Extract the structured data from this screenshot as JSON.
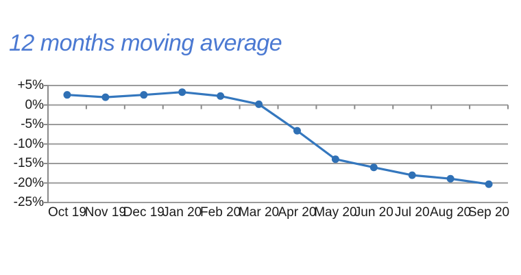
{
  "title": {
    "text": "12 months moving average",
    "color": "#4b79d2"
  },
  "chart_data": {
    "type": "line",
    "title": "12 months moving average",
    "categories": [
      "Oct 19",
      "Nov 19",
      "Dec 19",
      "Jan 20",
      "Feb 20",
      "Mar 20",
      "Apr 20",
      "May 20",
      "Jun 20",
      "Jul 20",
      "Aug 20",
      "Sep 20"
    ],
    "series": [
      {
        "name": "12 months moving average",
        "values": [
          2.6,
          2.0,
          2.6,
          3.3,
          2.3,
          0.2,
          -6.6,
          -13.9,
          -16.0,
          -18.0,
          -18.9,
          -20.3
        ]
      }
    ],
    "xlabel": "",
    "ylabel": "",
    "ylim": [
      -25,
      5
    ],
    "ytick_values": [
      5,
      0,
      -5,
      -10,
      -15,
      -20,
      -25
    ],
    "ytick_labels": [
      "+5%",
      "0%",
      "-5%",
      "-10%",
      "-15%",
      "-20%",
      "-25%"
    ],
    "grid": "horizontal",
    "legend": "none",
    "marker": "circle",
    "line_color": "#3477be",
    "marker_color": "#2f70b5",
    "gridline_color": "#9b9b9b",
    "axis_color": "#8a8a8a",
    "label_color": "#1a1a1a"
  }
}
